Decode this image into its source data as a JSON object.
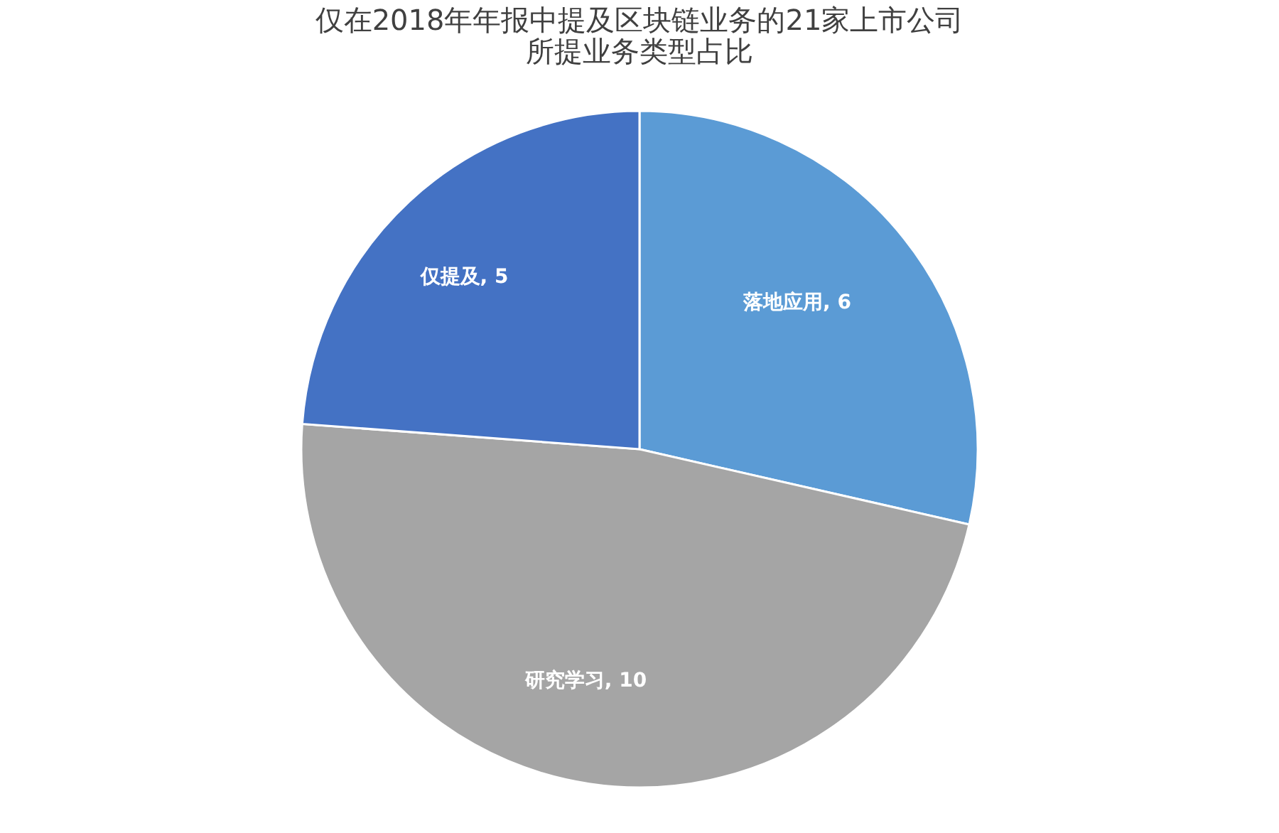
{
  "chart_data": {
    "type": "pie",
    "title": [
      "仅在2018年年报中提及区块链业务的21家上市公司",
      "所提业务类型占比"
    ],
    "categories": [
      "落地应用",
      "研究学习",
      "仅提及"
    ],
    "values": [
      6,
      10,
      5
    ],
    "colors": [
      "#5b9bd5",
      "#a5a5a5",
      "#4472c4"
    ],
    "value_labels": [
      ", 6",
      ", 10",
      ", 5"
    ],
    "legend": false
  }
}
